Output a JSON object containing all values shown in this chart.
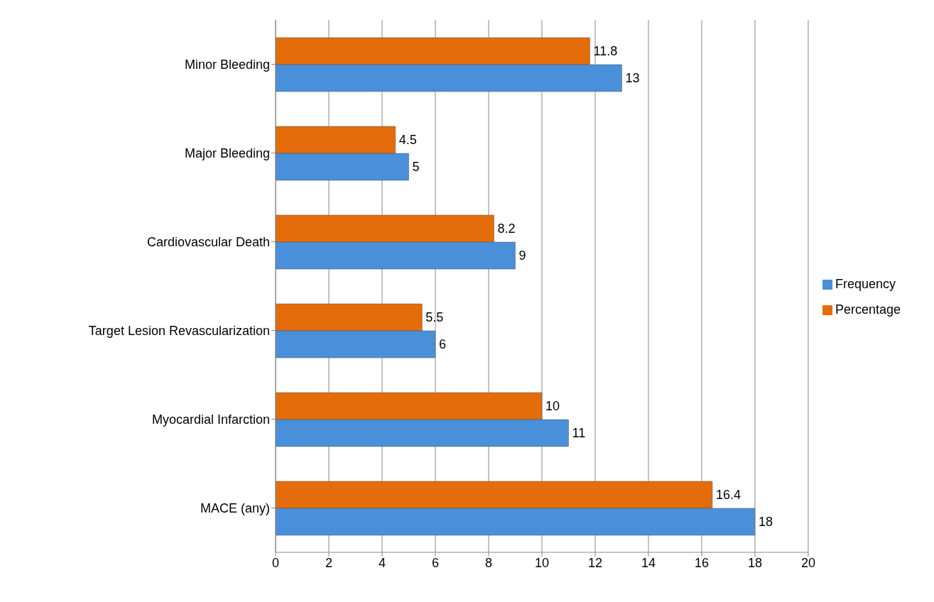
{
  "chart_data": {
    "type": "bar",
    "orientation": "horizontal",
    "categories": [
      "Minor Bleeding",
      "Major Bleeding",
      "Cardiovascular Death",
      "Target Lesion Revascularization",
      "Myocardial Infarction",
      "MACE (any)"
    ],
    "series": [
      {
        "name": "Percentage",
        "color": "#e46c0a",
        "values": [
          11.8,
          4.5,
          8.2,
          5.5,
          10,
          16.4
        ]
      },
      {
        "name": "Frequency",
        "color": "#4a8fd9",
        "values": [
          13,
          5,
          9,
          6,
          11,
          18
        ]
      }
    ],
    "xlim": [
      0,
      20
    ],
    "xticks": [
      0,
      2,
      4,
      6,
      8,
      10,
      12,
      14,
      16,
      18,
      20
    ],
    "grid": "x",
    "legend": "right",
    "data_labels": true
  }
}
